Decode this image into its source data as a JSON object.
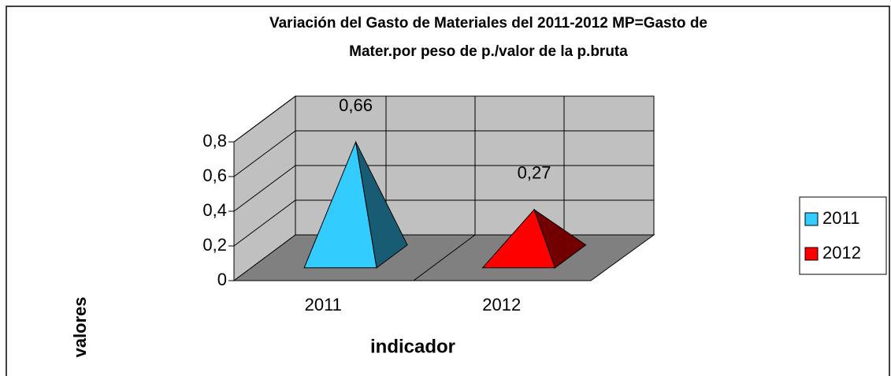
{
  "chart_data": {
    "type": "pyramid3d",
    "title": "Variación del Gasto de Materiales del 2011-2012 MP=Gasto de",
    "subtitle": "Mater.por peso de p./valor de la p.bruta",
    "y_label": "valores",
    "x_label": "indicador",
    "categories": [
      "2011",
      "2012"
    ],
    "series": [
      {
        "name": "2011",
        "color": "#33ccff",
        "values": [
          0.66,
          null
        ],
        "value_labels": [
          "0,66",
          null
        ]
      },
      {
        "name": "2012",
        "color": "#ff0000",
        "values": [
          null,
          0.27
        ],
        "value_labels": [
          null,
          "0,27"
        ]
      }
    ],
    "ylim": [
      0,
      0.8
    ],
    "yticks": [
      0,
      {
        "value": 0.2,
        "label": "0,2"
      },
      {
        "value": 0.4,
        "label": "0,4"
      },
      {
        "value": 0.6,
        "label": "0,6"
      },
      {
        "value": 0.8,
        "label": "0,8"
      }
    ],
    "grid": true,
    "legend": "right"
  }
}
